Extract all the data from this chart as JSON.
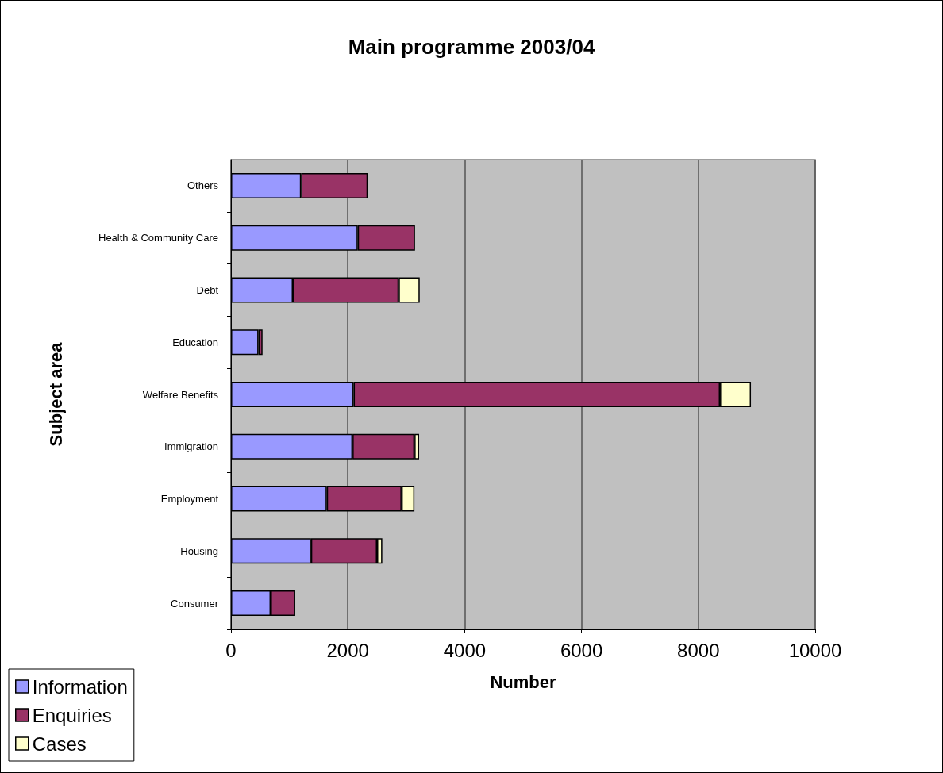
{
  "chart_data": {
    "type": "bar",
    "title": "Main programme 2003/04",
    "xlabel": "Number",
    "ylabel": "Subject area",
    "orientation": "horizontal",
    "stacked": true,
    "categories": [
      "Others",
      "Health & Community Care",
      "Debt",
      "Education",
      "Welfare Benefits",
      "Immigration",
      "Employment",
      "Housing",
      "Consumer"
    ],
    "series": [
      {
        "name": "Information",
        "color": "#9999ff",
        "values": [
          1200,
          2170,
          1060,
          470,
          2100,
          2080,
          1640,
          1370,
          680
        ]
      },
      {
        "name": "Enquiries",
        "color": "#993366",
        "values": [
          1140,
          980,
          1810,
          70,
          6270,
          1060,
          1280,
          1130,
          420
        ]
      },
      {
        "name": "Cases",
        "color": "#ffffcc",
        "values": [
          null,
          null,
          360,
          null,
          530,
          80,
          220,
          90,
          null
        ]
      }
    ],
    "xlim": [
      0,
      10000
    ],
    "xticks": [
      0,
      2000,
      4000,
      6000,
      8000,
      10000
    ],
    "grid": "x",
    "legend": "bottom left"
  }
}
